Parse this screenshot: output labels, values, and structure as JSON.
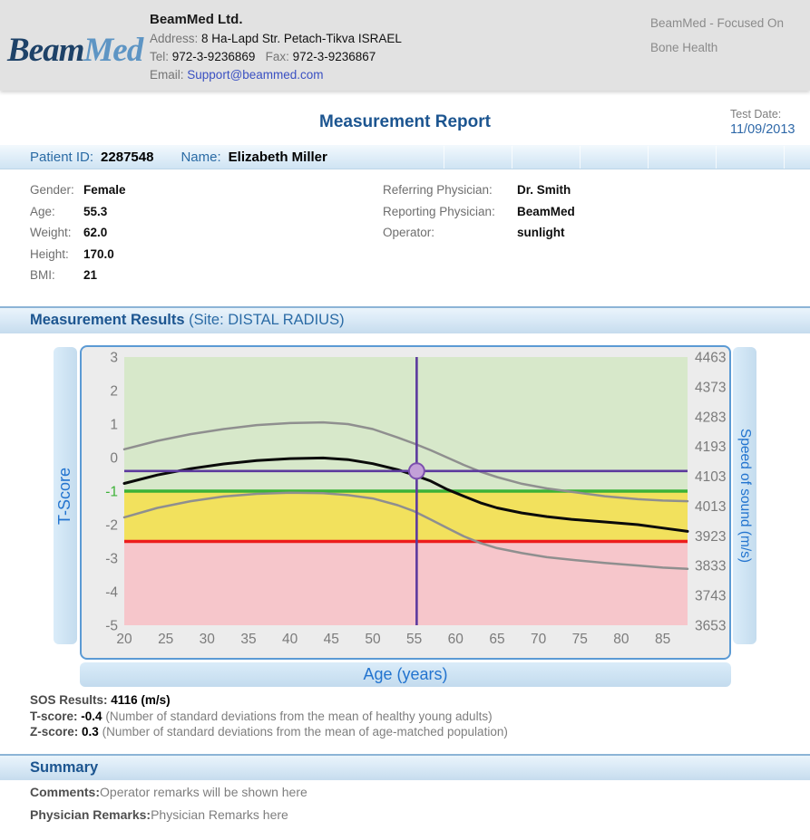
{
  "header": {
    "logo_part1": "Beam",
    "logo_part2": "Med",
    "company_name": "BeamMed Ltd.",
    "address_label": "Address:",
    "address_value": "8 Ha-Lapd Str.  Petach-Tikva ISRAEL",
    "tel_label": "Tel:",
    "tel_value": "972-3-9236869",
    "fax_label": "Fax:",
    "fax_value": "972-3-9236867",
    "email_label": "Email:",
    "email_value": "Support@beammed.com",
    "tagline_line1": "BeamMed - Focused On",
    "tagline_line2": "Bone Health"
  },
  "report": {
    "title": "Measurement Report",
    "test_date_label": "Test Date:",
    "test_date_value": "11/09/2013"
  },
  "patient": {
    "id_label": "Patient ID:",
    "id_value": "2287548",
    "name_label": "Name:",
    "name_value": "Elizabeth Miller",
    "details_left": [
      {
        "label": "Gender:",
        "value": "Female"
      },
      {
        "label": "Age:",
        "value": "55.3"
      },
      {
        "label": "Weight:",
        "value": "62.0"
      },
      {
        "label": "Height:",
        "value": "170.0"
      },
      {
        "label": "BMI:",
        "value": "21"
      }
    ],
    "details_right": [
      {
        "label": "Referring Physician:",
        "value": "Dr. Smith"
      },
      {
        "label": "Reporting Physician:",
        "value": "BeamMed"
      },
      {
        "label": "Operator:",
        "value": "sunlight"
      }
    ]
  },
  "results_section": {
    "title": "Measurement Results",
    "site": " (Site: DISTAL RADIUS)"
  },
  "chart_data": {
    "type": "line",
    "xlabel": "Age (years)",
    "ylabel_left": "T-Score",
    "ylabel_right": "Speed of sound (m/s)",
    "xlim": [
      20,
      88
    ],
    "ylim": [
      3,
      -5
    ],
    "x_ticks": [
      20,
      25,
      30,
      35,
      40,
      45,
      50,
      55,
      60,
      65,
      70,
      75,
      80,
      85
    ],
    "y_ticks_left": [
      3,
      2,
      1,
      0,
      -1,
      -2,
      -3,
      -4,
      -5
    ],
    "y_ticks_right": [
      4463,
      4373,
      4283,
      4193,
      4103,
      4013,
      3923,
      3833,
      3743,
      3653
    ],
    "grid": false,
    "zones": [
      {
        "name": "upper",
        "from": 3,
        "to": -1,
        "color": "#d7e8ca"
      },
      {
        "name": "middle",
        "from": -1,
        "to": -2.5,
        "color": "#f2e15d"
      },
      {
        "name": "lower",
        "from": -2.5,
        "to": -5,
        "color": "#f6c6cb"
      }
    ],
    "reference_lines": [
      {
        "name": "threshold-minus-1",
        "y": -1,
        "color": "#3cb237"
      },
      {
        "name": "threshold-minus-2-5",
        "y": -2.5,
        "color": "#ed1c1c"
      }
    ],
    "marker": {
      "age": 55.3,
      "tscore": -0.4,
      "line_color": "#5c3a9e",
      "fill_color": "#c3a0d8",
      "ring_color": "#7c4fae"
    },
    "series": [
      {
        "name": "upper_reference",
        "color": "#8f8f8f",
        "points": [
          [
            20,
            0.25
          ],
          [
            24,
            0.5
          ],
          [
            28,
            0.7
          ],
          [
            32,
            0.85
          ],
          [
            36,
            0.97
          ],
          [
            40,
            1.03
          ],
          [
            44,
            1.05
          ],
          [
            47,
            1.0
          ],
          [
            50,
            0.85
          ],
          [
            53,
            0.6
          ],
          [
            55,
            0.42
          ],
          [
            57,
            0.22
          ],
          [
            59,
            0.0
          ],
          [
            61,
            -0.22
          ],
          [
            63,
            -0.42
          ],
          [
            65,
            -0.58
          ],
          [
            68,
            -0.78
          ],
          [
            71,
            -0.92
          ],
          [
            74,
            -1.02
          ],
          [
            78,
            -1.15
          ],
          [
            82,
            -1.24
          ],
          [
            85,
            -1.28
          ],
          [
            88,
            -1.3
          ]
        ]
      },
      {
        "name": "mean_reference",
        "color": "#0a0a0a",
        "points": [
          [
            20,
            -0.77
          ],
          [
            24,
            -0.52
          ],
          [
            28,
            -0.33
          ],
          [
            32,
            -0.19
          ],
          [
            36,
            -0.09
          ],
          [
            40,
            -0.03
          ],
          [
            44,
            -0.01
          ],
          [
            47,
            -0.06
          ],
          [
            50,
            -0.18
          ],
          [
            53,
            -0.36
          ],
          [
            55,
            -0.52
          ],
          [
            57,
            -0.7
          ],
          [
            59,
            -0.95
          ],
          [
            61,
            -1.15
          ],
          [
            63,
            -1.35
          ],
          [
            65,
            -1.5
          ],
          [
            68,
            -1.65
          ],
          [
            71,
            -1.76
          ],
          [
            74,
            -1.84
          ],
          [
            78,
            -1.92
          ],
          [
            82,
            -2.0
          ],
          [
            85,
            -2.1
          ],
          [
            88,
            -2.2
          ]
        ]
      },
      {
        "name": "lower_reference",
        "color": "#8f8f8f",
        "points": [
          [
            20,
            -1.78
          ],
          [
            24,
            -1.5
          ],
          [
            28,
            -1.3
          ],
          [
            32,
            -1.16
          ],
          [
            36,
            -1.08
          ],
          [
            40,
            -1.05
          ],
          [
            44,
            -1.06
          ],
          [
            47,
            -1.12
          ],
          [
            50,
            -1.22
          ],
          [
            53,
            -1.42
          ],
          [
            55,
            -1.6
          ],
          [
            57,
            -1.85
          ],
          [
            59,
            -2.1
          ],
          [
            61,
            -2.35
          ],
          [
            63,
            -2.55
          ],
          [
            65,
            -2.7
          ],
          [
            68,
            -2.85
          ],
          [
            71,
            -2.97
          ],
          [
            74,
            -3.05
          ],
          [
            78,
            -3.14
          ],
          [
            82,
            -3.22
          ],
          [
            85,
            -3.28
          ],
          [
            88,
            -3.32
          ]
        ]
      }
    ]
  },
  "results": {
    "sos_label": "SOS Results:",
    "sos_value": "4116 (m/s)",
    "tscore_label": "T-score:",
    "tscore_value": "-0.4",
    "tscore_desc": "(Number of standard deviations from the mean of healthy young adults)",
    "zscore_label": "Z-score:",
    "zscore_value": "0.3",
    "zscore_desc": "(Number of standard deviations from the mean of age-matched population)"
  },
  "summary": {
    "title": "Summary",
    "comments_label": "Comments:",
    "comments_value": "Operator remarks will be shown here",
    "physician_label": "Physician Remarks:",
    "physician_value": "Physician Remarks here"
  }
}
